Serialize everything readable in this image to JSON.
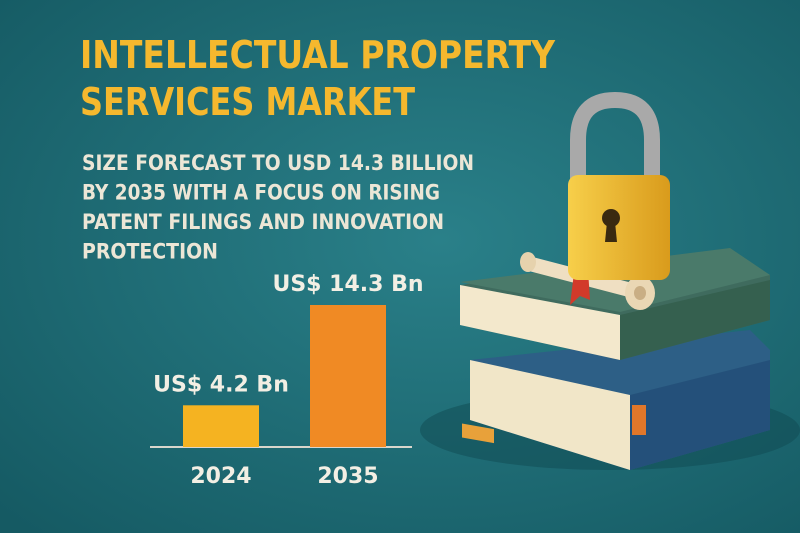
{
  "chart_data": {
    "type": "bar",
    "title": [
      "INTELLECTUAL PROPERTY",
      "SERVICES MARKET"
    ],
    "subtitle": [
      "SIZE FORECAST TO USD 14.3 BILLION",
      "BY 2035 WITH A FOCUS ON RISING",
      "PATENT FILINGS AND INNOVATION",
      "PROTECTION"
    ],
    "categories": [
      "2024",
      "2035"
    ],
    "values": [
      4.2,
      14.3
    ],
    "value_labels": [
      "US$ 4.2 Bn",
      "US$ 14.3 Bn"
    ],
    "colors": [
      "#f5b321",
      "#f08a24"
    ]
  }
}
